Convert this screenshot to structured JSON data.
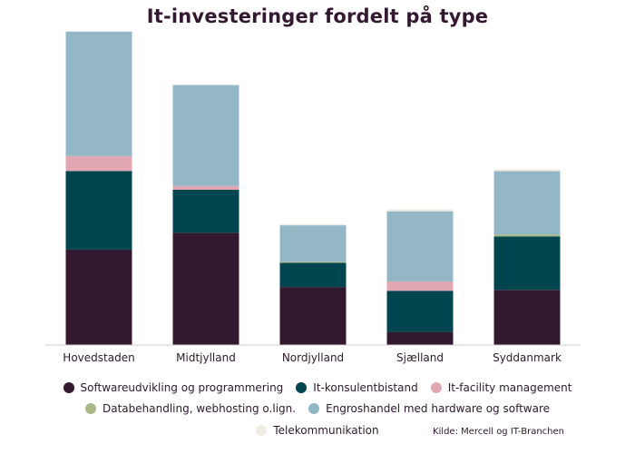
{
  "chart_data": {
    "type": "bar",
    "stacked": true,
    "title": "It-investeringer fordelt på type",
    "xlabel": "",
    "ylabel": "",
    "ylim": [
      0,
      330
    ],
    "grid": false,
    "legend_position": "bottom",
    "categories": [
      "Hovedstaden",
      "Midtjylland",
      "Nordjylland",
      "Sjælland",
      "Syddanmark"
    ],
    "series": [
      {
        "name": "Softwareudvikling og programmering",
        "color": "#33192f",
        "values": [
          102,
          120,
          62,
          14,
          59
        ]
      },
      {
        "name": "It-konsulentbistand",
        "color": "#01454f",
        "values": [
          84,
          46,
          26,
          44,
          57
        ]
      },
      {
        "name": "It-facility management",
        "color": "#e1a7b3",
        "values": [
          16,
          4,
          0,
          10,
          0
        ]
      },
      {
        "name": "Databehandling, webhosting o.lign.",
        "color": "#aab987",
        "values": [
          0,
          0,
          1,
          0,
          2
        ]
      },
      {
        "name": "Engroshandel med hardware og software",
        "color": "#93b7c5",
        "values": [
          133,
          108,
          39,
          75,
          68
        ]
      },
      {
        "name": "Telekommunikation",
        "color": "#f0ebe3",
        "values": [
          0,
          0,
          1,
          2,
          2
        ]
      }
    ],
    "source": "Kilde: Mercell og IT-Branchen"
  }
}
